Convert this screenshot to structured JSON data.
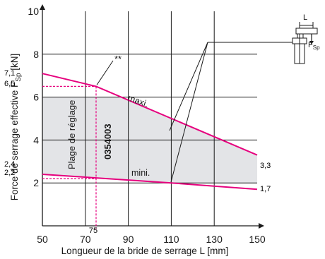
{
  "chart_data": {
    "type": "line",
    "xlabel": "Longueur de la bride de serrage L [mm]",
    "ylabel_main": "Force de serrage effective F",
    "ylabel_sub": "Sp",
    "ylabel_unit": " [kN]",
    "xlim": [
      50,
      150
    ],
    "ylim": [
      0,
      10
    ],
    "x_ticks": [
      "50",
      "70",
      "90",
      "110",
      "130",
      "150"
    ],
    "y_ticks": [
      "2",
      "4",
      "6",
      "8",
      "10"
    ],
    "grid": true,
    "grid_x": [
      70,
      90,
      110,
      130
    ],
    "grid_y": [
      2,
      4,
      6,
      8
    ],
    "series": [
      {
        "name": "maxi.",
        "x": [
          50,
          75,
          150
        ],
        "y": [
          7.1,
          6.5,
          3.3
        ]
      },
      {
        "name": "mini.",
        "x": [
          50,
          110,
          150
        ],
        "y": [
          2.4,
          2.0,
          1.7
        ]
      }
    ],
    "left_values": [
      "7,1",
      "6,5",
      "2,4",
      "2,2"
    ],
    "right_values": [
      "3,3",
      "1,7"
    ],
    "marker_x_label": "75",
    "marker_point": {
      "x": 75,
      "y": 6.5
    },
    "marker_y_low": 2.2,
    "gray_band_top": 6,
    "gray_band_bottom": 2,
    "region_label": "Plage de réglage",
    "part_number": "0354003",
    "footnote_marker": "**",
    "colors": {
      "curve": "#e6007e",
      "fill": "#e3e4e7",
      "grid": "#1a1a1a",
      "text": "#1a1a1a"
    },
    "inset": {
      "L_label": "L",
      "F_label": "F",
      "F_sub": "Sp"
    }
  }
}
